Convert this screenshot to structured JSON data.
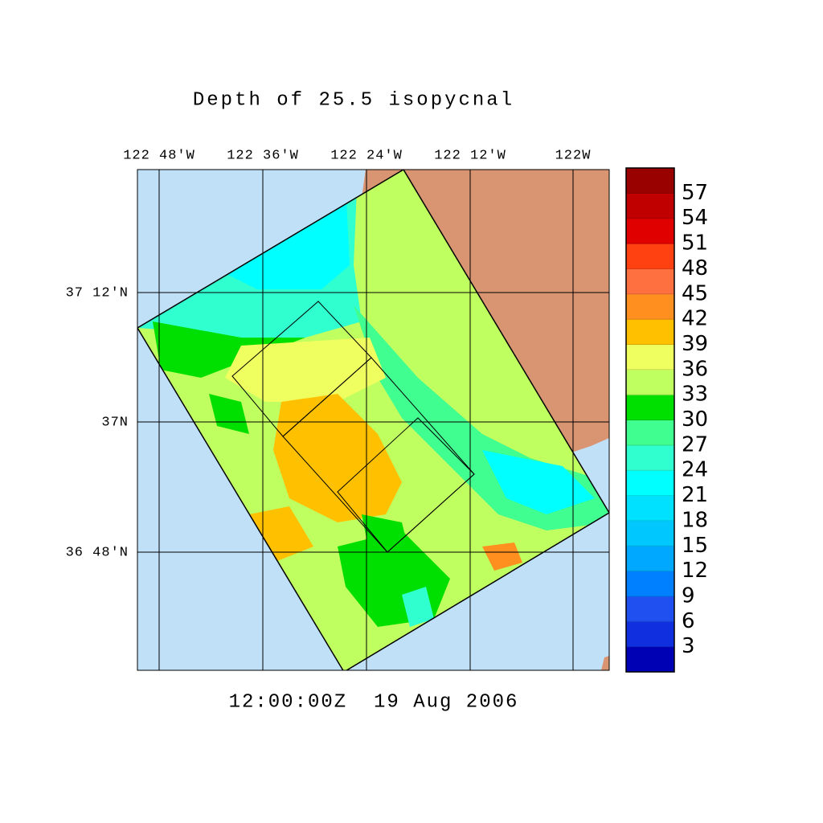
{
  "title": "Depth of 25.5 isopycnal",
  "time": "12:00:00Z  19 Aug 2006",
  "lon_ticks": [
    "122 48'W",
    "122 36'W",
    "122 24'W",
    "122 12'W",
    "122W"
  ],
  "lat_ticks": [
    "37 12'N",
    "37N",
    "36 48'N"
  ],
  "colorbar": {
    "lim": [
      0,
      60
    ],
    "ticks": [
      3,
      6,
      9,
      12,
      15,
      18,
      21,
      24,
      27,
      30,
      33,
      36,
      39,
      42,
      45,
      48,
      51,
      54,
      57
    ],
    "colors": [
      "#0000b4",
      "#1030e0",
      "#2050f0",
      "#0080ff",
      "#00a8ff",
      "#00c8ff",
      "#00e0ff",
      "#00ffff",
      "#30ffd0",
      "#40ff90",
      "#00e000",
      "#c0ff60",
      "#f0ff60",
      "#ffc000",
      "#ff9020",
      "#ff7040",
      "#ff4010",
      "#e00000",
      "#c00000",
      "#990000"
    ]
  }
}
